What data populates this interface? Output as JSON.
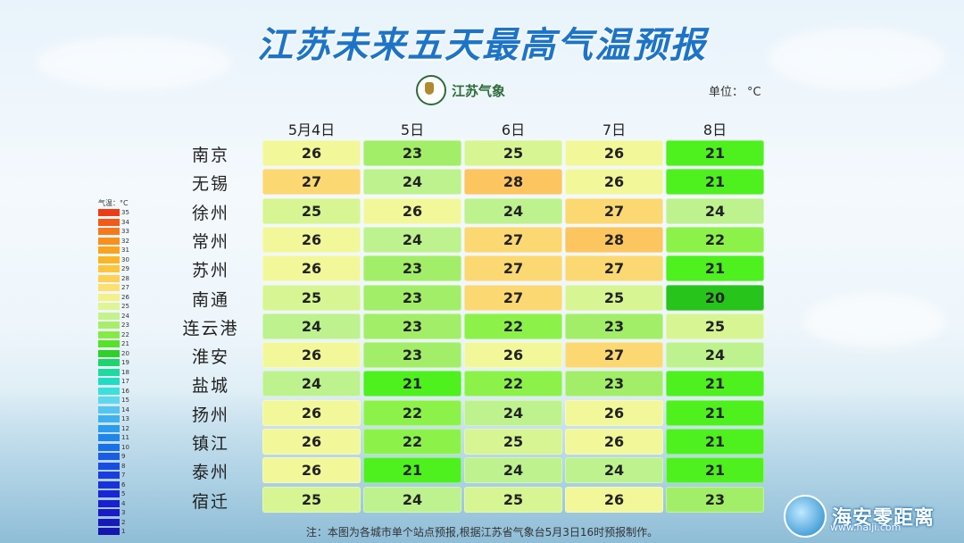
{
  "title": "江苏未来五天最高气温预报",
  "logo_text": "江苏气象",
  "unit_label": "单位：",
  "unit_value": "°C",
  "columns": [
    "5月4日",
    "5日",
    "6日",
    "7日",
    "8日"
  ],
  "rows": [
    {
      "city": "南京",
      "values": [
        26,
        23,
        25,
        26,
        21
      ]
    },
    {
      "city": "无锡",
      "values": [
        27,
        24,
        28,
        26,
        21
      ]
    },
    {
      "city": "徐州",
      "values": [
        25,
        26,
        24,
        27,
        24
      ]
    },
    {
      "city": "常州",
      "values": [
        26,
        24,
        27,
        28,
        22
      ]
    },
    {
      "city": "苏州",
      "values": [
        26,
        23,
        27,
        27,
        21
      ]
    },
    {
      "city": "南通",
      "values": [
        25,
        23,
        27,
        25,
        20
      ]
    },
    {
      "city": "连云港",
      "values": [
        24,
        23,
        22,
        23,
        25
      ]
    },
    {
      "city": "淮安",
      "values": [
        26,
        23,
        26,
        27,
        24
      ]
    },
    {
      "city": "盐城",
      "values": [
        24,
        21,
        22,
        23,
        21
      ]
    },
    {
      "city": "扬州",
      "values": [
        26,
        22,
        24,
        26,
        21
      ]
    },
    {
      "city": "镇江",
      "values": [
        26,
        22,
        25,
        26,
        21
      ]
    },
    {
      "city": "泰州",
      "values": [
        26,
        21,
        24,
        24,
        21
      ]
    },
    {
      "city": "宿迁",
      "values": [
        25,
        24,
        25,
        26,
        23
      ]
    }
  ],
  "color_scale": {
    "20": "#27c41c",
    "21": "#4ef01e",
    "22": "#8cf24a",
    "23": "#a3ee68",
    "24": "#bdf28e",
    "25": "#d7f592",
    "26": "#f2f79a",
    "27": "#fcd873",
    "28": "#fcc560"
  },
  "legend": {
    "title": "气温：°C",
    "stops": [
      {
        "label": "35",
        "color": "#ee3b16"
      },
      {
        "label": "34",
        "color": "#f25a18"
      },
      {
        "label": "33",
        "color": "#f7781a"
      },
      {
        "label": "32",
        "color": "#f98f1c"
      },
      {
        "label": "31",
        "color": "#fba31f"
      },
      {
        "label": "30",
        "color": "#fcb625"
      },
      {
        "label": "29",
        "color": "#fdc53c"
      },
      {
        "label": "28",
        "color": "#fdd154"
      },
      {
        "label": "27",
        "color": "#fde06e"
      },
      {
        "label": "26",
        "color": "#f4f08a"
      },
      {
        "label": "25",
        "color": "#dff595"
      },
      {
        "label": "24",
        "color": "#c4f28c"
      },
      {
        "label": "23",
        "color": "#a6ee6a"
      },
      {
        "label": "22",
        "color": "#86ea46"
      },
      {
        "label": "21",
        "color": "#56e12a"
      },
      {
        "label": "20",
        "color": "#2fd02a"
      },
      {
        "label": "19",
        "color": "#1fd46e"
      },
      {
        "label": "18",
        "color": "#1fd9a0"
      },
      {
        "label": "17",
        "color": "#20dcc4"
      },
      {
        "label": "16",
        "color": "#3ae0dc"
      },
      {
        "label": "15",
        "color": "#5fd8ee"
      },
      {
        "label": "14",
        "color": "#55c4f0"
      },
      {
        "label": "13",
        "color": "#3fb0ef"
      },
      {
        "label": "12",
        "color": "#2a9bee"
      },
      {
        "label": "11",
        "color": "#1f85ea"
      },
      {
        "label": "10",
        "color": "#1a70e6"
      },
      {
        "label": "9",
        "color": "#1a5de4"
      },
      {
        "label": "8",
        "color": "#1a4ce2"
      },
      {
        "label": "7",
        "color": "#1a3ddf"
      },
      {
        "label": "6",
        "color": "#1a30db"
      },
      {
        "label": "5",
        "color": "#1a25d6"
      },
      {
        "label": "4",
        "color": "#1a1fcf"
      },
      {
        "label": "3",
        "color": "#1a1ac6"
      },
      {
        "label": "2",
        "color": "#1818bb"
      },
      {
        "label": "1",
        "color": "#1616b0"
      }
    ]
  },
  "note": "注：本图为各城市单个站点预报,根据江苏省气象台5月3日16时预报制作。",
  "brand": {
    "name": "海安零距离",
    "url": "www.halji.com"
  }
}
